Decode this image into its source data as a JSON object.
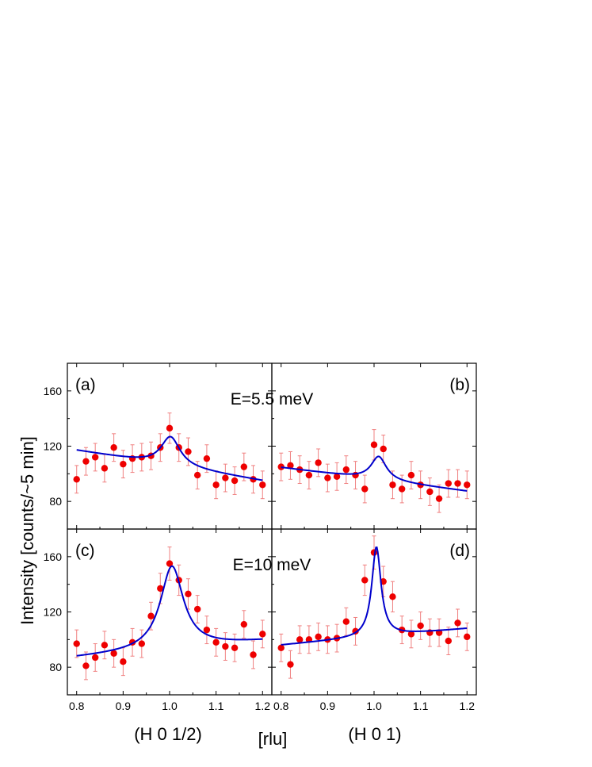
{
  "chart_data": {
    "type": "scatter",
    "ylabel": "Intensity [counts/~5 min]",
    "xunit_label": "[rlu]",
    "xlabels": [
      "(H 0 1/2)",
      "(H 0 1)"
    ],
    "xlim": [
      0.78,
      1.22
    ],
    "xticks": [
      0.8,
      0.9,
      1.0,
      1.1,
      1.2
    ],
    "xtick_labels": [
      "0.8",
      "0.9",
      "1.0",
      "1.1",
      "1.2"
    ],
    "rows": [
      {
        "energy_label": "E=5.5 meV",
        "ylim": [
          60,
          180
        ],
        "yticks": [
          80,
          120,
          160
        ],
        "ytick_labels": [
          "80",
          "120",
          "160"
        ]
      },
      {
        "energy_label": "E=10 meV",
        "ylim": [
          60,
          180
        ],
        "yticks": [
          80,
          120,
          160
        ],
        "ytick_labels": [
          "80",
          "120",
          "160"
        ]
      }
    ],
    "panels": [
      {
        "label": "(a)",
        "row": 0,
        "col": 0,
        "x": [
          0.8,
          0.82,
          0.84,
          0.86,
          0.88,
          0.9,
          0.92,
          0.94,
          0.96,
          0.98,
          1.0,
          1.02,
          1.04,
          1.06,
          1.08,
          1.1,
          1.12,
          1.14,
          1.16,
          1.18,
          1.2
        ],
        "y": [
          96,
          109,
          112,
          104,
          119,
          107,
          111,
          112,
          113,
          119,
          133,
          119,
          116,
          99,
          111,
          92,
          97,
          95,
          105,
          96,
          92
        ],
        "err": [
          10,
          10,
          10,
          10,
          10,
          10,
          10,
          10,
          10,
          10,
          11,
          10,
          10,
          10,
          10,
          10,
          10,
          10,
          10,
          10,
          10
        ],
        "fit": {
          "baseline_a": 106,
          "baseline_b": -55,
          "amplitude": 21,
          "center": 1.002,
          "hwhm": 0.025
        }
      },
      {
        "label": "(b)",
        "row": 0,
        "col": 1,
        "x": [
          0.8,
          0.82,
          0.84,
          0.86,
          0.88,
          0.9,
          0.92,
          0.94,
          0.96,
          0.98,
          1.0,
          1.02,
          1.04,
          1.06,
          1.08,
          1.1,
          1.12,
          1.14,
          1.16,
          1.18,
          1.2
        ],
        "y": [
          105,
          106,
          103,
          99,
          108,
          97,
          98,
          103,
          99,
          89,
          121,
          118,
          92,
          89,
          99,
          92,
          87,
          82,
          93,
          93,
          92
        ],
        "err": [
          10,
          10,
          10,
          10,
          10,
          10,
          10,
          10,
          10,
          10,
          11,
          10,
          10,
          10,
          10,
          10,
          10,
          10,
          10,
          10,
          10
        ],
        "fit": {
          "baseline_a": 96,
          "baseline_b": -43,
          "amplitude": 17,
          "center": 1.01,
          "hwhm": 0.02
        }
      },
      {
        "label": "(c)",
        "row": 1,
        "col": 0,
        "x": [
          0.8,
          0.82,
          0.84,
          0.86,
          0.88,
          0.9,
          0.92,
          0.94,
          0.96,
          0.98,
          1.0,
          1.02,
          1.04,
          1.06,
          1.08,
          1.1,
          1.12,
          1.14,
          1.16,
          1.18,
          1.2
        ],
        "y": [
          97,
          81,
          87,
          96,
          90,
          84,
          98,
          97,
          117,
          137,
          155,
          143,
          133,
          122,
          107,
          98,
          95,
          94,
          111,
          89,
          104
        ],
        "err": [
          10,
          10,
          10,
          10,
          10,
          10,
          10,
          10,
          10,
          11,
          12,
          11,
          11,
          10,
          10,
          10,
          10,
          10,
          10,
          10,
          10
        ],
        "fit": {
          "baseline_a": 93,
          "baseline_b": 30,
          "amplitude": 60,
          "center": 1.005,
          "hwhm": 0.03
        }
      },
      {
        "label": "(d)",
        "row": 1,
        "col": 1,
        "x": [
          0.8,
          0.82,
          0.84,
          0.86,
          0.88,
          0.9,
          0.92,
          0.94,
          0.96,
          0.98,
          1.0,
          1.02,
          1.04,
          1.06,
          1.08,
          1.1,
          1.12,
          1.14,
          1.16,
          1.18,
          1.2
        ],
        "y": [
          94,
          82,
          100,
          100,
          102,
          100,
          101,
          113,
          106,
          143,
          163,
          142,
          131,
          107,
          104,
          110,
          105,
          105,
          99,
          112,
          102
        ],
        "err": [
          10,
          10,
          10,
          10,
          10,
          10,
          10,
          10,
          10,
          11,
          12,
          11,
          11,
          10,
          10,
          10,
          10,
          10,
          10,
          10,
          10
        ],
        "fit": {
          "baseline_a": 102,
          "baseline_b": 30,
          "amplitude": 65,
          "center": 1.005,
          "hwhm": 0.012
        }
      }
    ]
  }
}
